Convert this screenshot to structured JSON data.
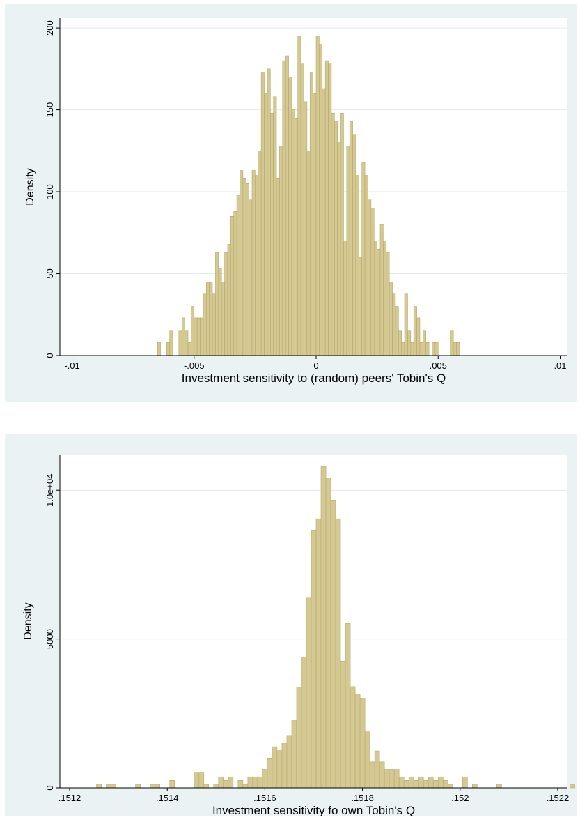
{
  "chart_data": [
    {
      "type": "bar",
      "title": "",
      "xlabel": "Investment sensitivity to (random) peers' Tobin's Q",
      "ylabel": "Density",
      "xlim": [
        -0.0105,
        0.0103
      ],
      "ylim": [
        0,
        206
      ],
      "x_ticks": [
        -0.01,
        -0.005,
        0,
        0.005,
        0.01
      ],
      "x_tick_labels": [
        "-.01",
        "-.005",
        "0",
        ".005",
        ".01"
      ],
      "y_ticks": [
        0,
        50,
        100,
        150,
        200
      ],
      "y_tick_labels": [
        "0",
        "50",
        "100",
        "150",
        "200"
      ],
      "grid": true,
      "bin_width": 0.000125,
      "bin_start": -0.0065,
      "values": [
        8,
        0,
        0,
        8,
        15,
        0,
        0,
        15,
        23,
        15,
        8,
        30,
        23,
        23,
        23,
        38,
        45,
        45,
        38,
        63,
        53,
        45,
        63,
        68,
        85,
        88,
        98,
        113,
        108,
        105,
        95,
        113,
        110,
        125,
        173,
        160,
        175,
        148,
        158,
        108,
        128,
        180,
        183,
        170,
        150,
        145,
        195,
        178,
        155,
        125,
        173,
        160,
        195,
        190,
        163,
        180,
        178,
        148,
        143,
        130,
        148,
        70,
        128,
        143,
        135,
        110,
        60,
        118,
        110,
        95,
        90,
        70,
        65,
        80,
        70,
        63,
        45,
        38,
        30,
        15,
        8,
        38,
        15,
        8,
        30,
        23,
        8,
        15,
        8,
        0,
        8,
        8,
        0,
        0,
        0,
        0,
        15,
        8,
        8
      ]
    },
    {
      "type": "bar",
      "title": "",
      "xlabel": "Investment sensitivity fo own Tobin's Q",
      "ylabel": "Density",
      "xlim": [
        0.15118,
        0.15222
      ],
      "ylim": [
        0,
        11200
      ],
      "x_ticks": [
        0.1512,
        0.1514,
        0.1516,
        0.1518,
        0.152,
        0.1522
      ],
      "x_tick_labels": [
        ".1512",
        ".1514",
        ".1516",
        ".1518",
        ".152",
        ".1522"
      ],
      "y_ticks": [
        0,
        5000,
        10000
      ],
      "y_tick_labels": [
        "0",
        "5000",
        "1.0e+04"
      ],
      "grid": true,
      "bin_width": 1e-05,
      "bin_start": 0.151255,
      "values": [
        120,
        0,
        120,
        120,
        0,
        0,
        0,
        0,
        120,
        0,
        0,
        120,
        120,
        0,
        0,
        250,
        0,
        0,
        0,
        0,
        500,
        500,
        120,
        0,
        120,
        370,
        250,
        370,
        0,
        250,
        120,
        370,
        370,
        370,
        620,
        1000,
        1380,
        1250,
        1500,
        1760,
        2260,
        3380,
        4390,
        6400,
        8660,
        9040,
        10800,
        10420,
        9670,
        9040,
        4260,
        5520,
        3400,
        3150,
        3010,
        1880,
        870,
        1240,
        870,
        620,
        620,
        620,
        370,
        250,
        370,
        250,
        370,
        250,
        370,
        250,
        370,
        250,
        120,
        0,
        0,
        370,
        0,
        120,
        0,
        0,
        0,
        0,
        120,
        0,
        0,
        0,
        0,
        0,
        0,
        0,
        0,
        0,
        0,
        0,
        0,
        0,
        0,
        120
      ]
    }
  ]
}
